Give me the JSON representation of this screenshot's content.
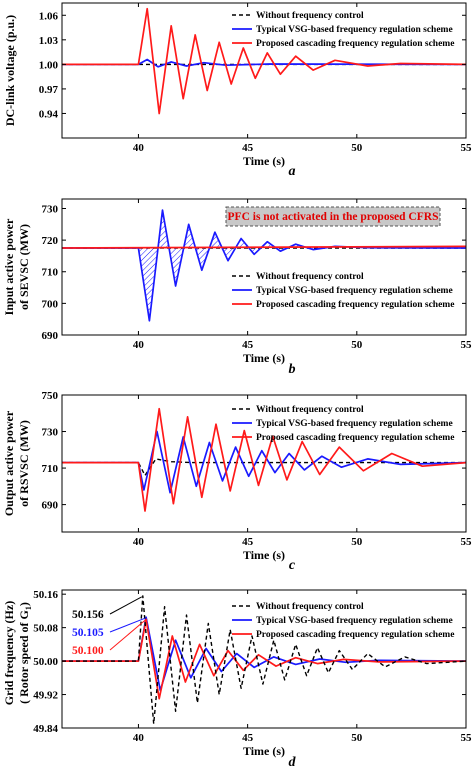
{
  "legend_labels": [
    "Without frequency control",
    "Typical VSG-based frequency regulation scheme",
    "Proposed cascading frequency regulation scheme"
  ],
  "colors": {
    "without": "#000000",
    "typical": "#1a1aff",
    "proposed": "#ff1a1a",
    "pfc_box": "#c8c8c8",
    "pfc_text": "#e00000"
  },
  "pfc_note": "PFC is not activated in the proposed CFRS",
  "peak_labels": {
    "without": "50.156",
    "typical": "50.105",
    "proposed": "50.100"
  },
  "chart_data": [
    {
      "type": "line",
      "panel_label": "a",
      "ylabel": "DC-link voltage (p.u.)",
      "xlabel": "Time (s)",
      "xlim": [
        36.5,
        55
      ],
      "ylim": [
        0.91,
        1.075
      ],
      "xticks": [
        40,
        45,
        50,
        55
      ],
      "yticks": [
        0.94,
        0.97,
        1.0,
        1.03,
        1.06
      ],
      "ytick_labels": [
        "0.94",
        "0.97",
        "1.00",
        "1.03",
        "1.06"
      ],
      "grid": false,
      "legend": "top-right",
      "series": [
        {
          "name": "Without frequency control",
          "style": "dashed",
          "x": [
            36.5,
            55
          ],
          "y": [
            1.0,
            1.0
          ]
        },
        {
          "name": "Typical VSG-based frequency regulation scheme",
          "style": "solid",
          "x": [
            36.5,
            40.0,
            40.4,
            40.9,
            41.5,
            42.2,
            43.0,
            44.0,
            46.0,
            55.0
          ],
          "y": [
            1.0,
            1.0,
            1.006,
            0.997,
            1.003,
            0.998,
            1.002,
            0.999,
            1.0005,
            1.0
          ]
        },
        {
          "name": "Proposed cascading frequency regulation scheme",
          "style": "solid",
          "x": [
            36.5,
            40.0,
            40.4,
            40.95,
            41.5,
            42.05,
            42.6,
            43.15,
            43.7,
            44.25,
            44.8,
            45.35,
            45.9,
            46.5,
            47.2,
            48.0,
            49.0,
            50.5,
            52.0,
            55.0
          ],
          "y": [
            1.0,
            1.0,
            1.068,
            0.94,
            1.047,
            0.958,
            1.036,
            0.968,
            1.027,
            0.976,
            1.02,
            0.983,
            1.014,
            0.988,
            1.01,
            0.993,
            1.005,
            0.998,
            1.001,
            1.0
          ]
        }
      ]
    },
    {
      "type": "line",
      "panel_label": "b",
      "ylabel": "Input active power of SEVSC (MW)",
      "xlabel": "Time (s)",
      "xlim": [
        36.5,
        55
      ],
      "ylim": [
        690,
        733
      ],
      "xticks": [
        40,
        45,
        50,
        55
      ],
      "yticks": [
        690,
        700,
        710,
        720,
        730
      ],
      "ytick_labels": [
        "690",
        "700",
        "710",
        "720",
        "730"
      ],
      "grid": false,
      "legend": "bottom-right",
      "series": [
        {
          "name": "Without frequency control",
          "style": "dashed",
          "x": [
            36.5,
            55
          ],
          "y": [
            717.5,
            717.5
          ]
        },
        {
          "name": "Typical VSG-based frequency regulation scheme",
          "style": "solid",
          "x": [
            36.5,
            40.0,
            40.5,
            41.1,
            41.7,
            42.3,
            42.9,
            43.5,
            44.1,
            44.7,
            45.3,
            45.9,
            46.5,
            47.2,
            48.0,
            49.0,
            50.5,
            55.0
          ],
          "y": [
            717.5,
            717.5,
            694.5,
            729.5,
            705.5,
            725.0,
            710.5,
            722.5,
            713.5,
            720.5,
            715.5,
            719.5,
            716.5,
            718.7,
            717.0,
            718.0,
            717.6,
            717.5
          ]
        },
        {
          "name": "Proposed cascading frequency regulation scheme",
          "style": "solid",
          "x": [
            36.5,
            55
          ],
          "y": [
            717.5,
            718.0
          ]
        }
      ]
    },
    {
      "type": "line",
      "panel_label": "c",
      "ylabel": "Output active power of RSVSC (MW)",
      "xlabel": "Time (s)",
      "xlim": [
        36.5,
        55
      ],
      "ylim": [
        675,
        750
      ],
      "xticks": [
        40,
        45,
        50,
        55
      ],
      "yticks": [
        690,
        710,
        730,
        750
      ],
      "ytick_labels": [
        "690",
        "710",
        "730",
        "750"
      ],
      "grid": false,
      "legend": "top-right",
      "series": [
        {
          "name": "Without frequency control",
          "style": "dashed",
          "x": [
            36.5,
            40.0,
            40.3,
            40.8,
            41.5,
            42.5,
            55.0
          ],
          "y": [
            713,
            713,
            706,
            715,
            713.5,
            713,
            713
          ]
        },
        {
          "name": "Typical VSG-based frequency regulation scheme",
          "style": "solid",
          "x": [
            36.5,
            40.0,
            40.25,
            40.85,
            41.45,
            42.05,
            42.65,
            43.25,
            43.85,
            44.45,
            45.05,
            45.65,
            46.25,
            46.9,
            47.6,
            48.4,
            49.3,
            50.5,
            52.0,
            55.0
          ],
          "y": [
            713,
            713,
            698,
            730,
            696.5,
            727,
            700,
            724,
            703,
            721.5,
            705.5,
            719.5,
            707.5,
            718,
            709,
            716.5,
            710.5,
            715,
            712,
            713
          ]
        },
        {
          "name": "Proposed cascading frequency regulation scheme",
          "style": "solid",
          "x": [
            36.5,
            40.0,
            40.3,
            40.95,
            41.6,
            42.25,
            42.9,
            43.55,
            44.2,
            44.85,
            45.5,
            46.15,
            46.8,
            47.5,
            48.3,
            49.2,
            50.3,
            51.6,
            53.0,
            55.0
          ],
          "y": [
            713,
            713,
            686.5,
            742.5,
            690.5,
            738,
            694,
            734,
            697.5,
            730.5,
            700.5,
            727.5,
            703.5,
            724.5,
            706.5,
            721.5,
            708.5,
            718,
            711,
            713
          ]
        }
      ]
    },
    {
      "type": "line",
      "panel_label": "d",
      "ylabel": "Grid frequency (Hz) ( Rotor speed of G1)",
      "xlabel": "Time (s)",
      "xlim": [
        36.5,
        55
      ],
      "ylim": [
        49.84,
        50.17
      ],
      "xticks": [
        40,
        45,
        50,
        55
      ],
      "yticks": [
        49.84,
        49.92,
        50.0,
        50.08,
        50.16
      ],
      "ytick_labels": [
        "49.84",
        "49.92",
        "50.00",
        "50.08",
        "50.16"
      ],
      "grid": false,
      "legend": "top-right",
      "series": [
        {
          "name": "Without frequency control",
          "style": "dashed",
          "x": [
            36.5,
            40.0,
            40.2,
            40.7,
            41.2,
            41.7,
            42.2,
            42.7,
            43.2,
            43.7,
            44.2,
            44.7,
            45.2,
            45.7,
            46.2,
            46.7,
            47.2,
            47.7,
            48.2,
            48.7,
            49.2,
            49.8,
            50.5,
            51.3,
            52.2,
            53.2,
            55.0
          ],
          "y": [
            50.0,
            50.0,
            50.156,
            49.85,
            50.13,
            49.88,
            50.11,
            49.9,
            50.09,
            49.92,
            50.075,
            49.935,
            50.06,
            49.945,
            50.05,
            49.955,
            50.04,
            49.965,
            50.032,
            49.972,
            50.025,
            49.98,
            50.018,
            49.986,
            50.01,
            49.994,
            50.0
          ]
        },
        {
          "name": "Typical VSG-based frequency regulation scheme",
          "style": "solid",
          "x": [
            36.5,
            40.0,
            40.35,
            41.0,
            41.7,
            42.4,
            43.1,
            43.8,
            44.5,
            45.3,
            46.2,
            47.2,
            48.3,
            49.5,
            51.0,
            55.0
          ],
          "y": [
            50.0,
            50.0,
            50.105,
            49.93,
            50.05,
            49.96,
            50.03,
            49.975,
            50.018,
            49.985,
            50.01,
            49.992,
            50.005,
            49.997,
            50.002,
            50.0
          ]
        },
        {
          "name": "Proposed cascading frequency regulation scheme",
          "style": "solid",
          "x": [
            36.5,
            40.0,
            40.35,
            40.95,
            41.55,
            42.15,
            42.8,
            43.45,
            44.1,
            44.8,
            45.5,
            46.3,
            47.2,
            48.2,
            49.4,
            51.0,
            55.0
          ],
          "y": [
            50.0,
            50.0,
            50.1,
            49.91,
            50.06,
            49.95,
            50.04,
            49.965,
            50.025,
            49.978,
            50.015,
            49.988,
            50.008,
            49.994,
            50.004,
            49.998,
            50.0
          ]
        }
      ]
    }
  ]
}
